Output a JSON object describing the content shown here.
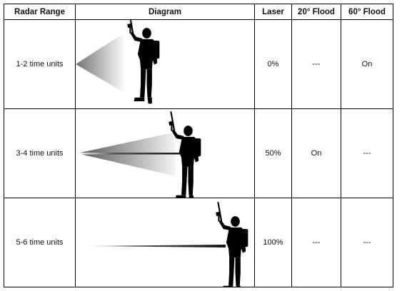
{
  "headers": {
    "radar_range": "Radar Range",
    "diagram": "Diagram",
    "laser": "Laser",
    "flood_20": "20° Flood",
    "flood_60": "60° Flood"
  },
  "rows": [
    {
      "range": "1-2 time units",
      "laser": "0%",
      "flood_20": "---",
      "flood_60": "On",
      "beam_type": "wide-flood"
    },
    {
      "range": "3-4 time units",
      "laser": "50%",
      "flood_20": "On",
      "flood_60": "---",
      "beam_type": "narrow-flood-with-laser"
    },
    {
      "range": "5-6 time units",
      "laser": "100%",
      "flood_20": "---",
      "flood_60": "---",
      "beam_type": "laser-only"
    }
  ],
  "icons": {
    "soldier": "soldier-silhouette-icon"
  }
}
